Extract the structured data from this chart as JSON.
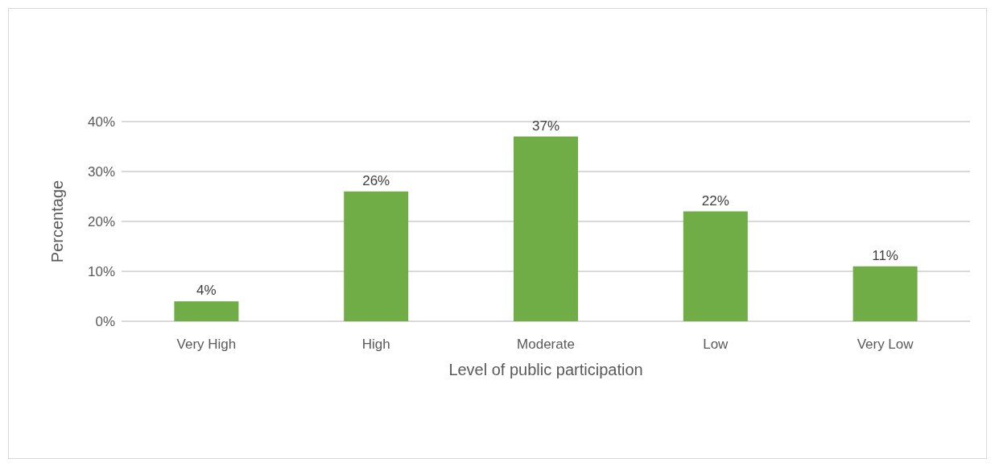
{
  "chart_data": {
    "type": "bar",
    "xlabel": "Level of public participation",
    "ylabel": "Percentage",
    "categories": [
      "Very High",
      "High",
      "Moderate",
      "Low",
      "Very Low"
    ],
    "values": [
      4,
      26,
      37,
      22,
      11
    ],
    "value_labels": [
      "4%",
      "26%",
      "37%",
      "22%",
      "11%"
    ],
    "color": "#70ad47",
    "ylim": [
      0,
      40
    ],
    "yticks": [
      {
        "value": 0,
        "label": "0%"
      },
      {
        "value": 10,
        "label": "10%"
      },
      {
        "value": 20,
        "label": "20%"
      },
      {
        "value": 30,
        "label": "30%"
      },
      {
        "value": 40,
        "label": "40%"
      }
    ],
    "grid": "y"
  }
}
